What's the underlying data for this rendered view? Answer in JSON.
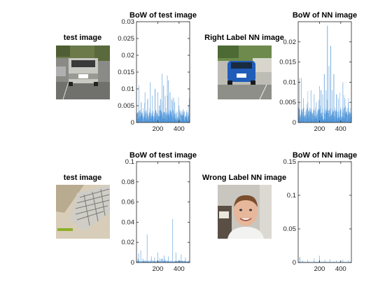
{
  "colors": {
    "bar": "#2a7fd0",
    "axis": "#262626"
  },
  "panels": [
    {
      "photo_title": "test image",
      "photo_icon": "pickup-truck-rear-photo",
      "chart_title": "BoW of test image"
    },
    {
      "photo_title": "Right Label NN image",
      "photo_icon": "blue-car-rear-photo",
      "chart_title": "BoW of NN image"
    },
    {
      "photo_title": "test image",
      "photo_icon": "keyboard-photo",
      "chart_title": "BoW of test image"
    },
    {
      "photo_title": "Wrong Label NN image",
      "photo_icon": "face-photo",
      "chart_title": "BoW of NN image"
    }
  ],
  "chart_data": [
    {
      "type": "bar",
      "title": "BoW of test image",
      "xlim": [
        0,
        500
      ],
      "ylim": [
        0,
        0.03
      ],
      "xticks": [
        200,
        400
      ],
      "yticks": [
        0,
        0.005,
        0.01,
        0.015,
        0.02,
        0.025,
        0.03
      ],
      "ytick_labels": [
        "0",
        "0.005",
        "0.01",
        "0.015",
        "0.02",
        "0.025",
        "0.03"
      ],
      "n_bins": 500,
      "baseline": 0.002,
      "peaks": [
        [
          22,
          0.011
        ],
        [
          45,
          0.006
        ],
        [
          80,
          0.009
        ],
        [
          105,
          0.007
        ],
        [
          130,
          0.012
        ],
        [
          150,
          0.008
        ],
        [
          175,
          0.01
        ],
        [
          200,
          0.009
        ],
        [
          225,
          0.007
        ],
        [
          240,
          0.0145
        ],
        [
          255,
          0.011
        ],
        [
          270,
          0.008
        ],
        [
          290,
          0.014
        ],
        [
          300,
          0.0125
        ],
        [
          315,
          0.009
        ],
        [
          330,
          0.007
        ],
        [
          360,
          0.006
        ],
        [
          400,
          0.005
        ],
        [
          440,
          0.004
        ],
        [
          470,
          0.003
        ]
      ]
    },
    {
      "type": "bar",
      "title": "BoW of NN image",
      "xlim": [
        0,
        500
      ],
      "ylim": [
        0,
        0.025
      ],
      "xticks": [
        200,
        400
      ],
      "yticks": [
        0,
        0.005,
        0.01,
        0.015,
        0.02
      ],
      "ytick_labels": [
        "0",
        "0.005",
        "0.01",
        "0.015",
        "0.02"
      ],
      "n_bins": 500,
      "baseline": 0.002,
      "peaks": [
        [
          12,
          0.011
        ],
        [
          30,
          0.011
        ],
        [
          50,
          0.006
        ],
        [
          90,
          0.005
        ],
        [
          120,
          0.008
        ],
        [
          150,
          0.007
        ],
        [
          170,
          0.005
        ],
        [
          200,
          0.009
        ],
        [
          215,
          0.008
        ],
        [
          230,
          0.007
        ],
        [
          245,
          0.012
        ],
        [
          262,
          0.008
        ],
        [
          275,
          0.024
        ],
        [
          290,
          0.014
        ],
        [
          305,
          0.019
        ],
        [
          320,
          0.008
        ],
        [
          335,
          0.012
        ],
        [
          360,
          0.007
        ],
        [
          380,
          0.006
        ],
        [
          420,
          0.01
        ],
        [
          440,
          0.006
        ],
        [
          470,
          0.005
        ]
      ]
    },
    {
      "type": "bar",
      "title": "BoW of test image",
      "xlim": [
        0,
        500
      ],
      "ylim": [
        0,
        0.1
      ],
      "xticks": [
        200,
        400
      ],
      "yticks": [
        0,
        0.02,
        0.04,
        0.06,
        0.08,
        0.1
      ],
      "ytick_labels": [
        "0",
        "0.02",
        "0.04",
        "0.06",
        "0.08",
        "0.1"
      ],
      "n_bins": 500,
      "baseline": 0.001,
      "peaks": [
        [
          20,
          0.009
        ],
        [
          40,
          0.012
        ],
        [
          60,
          0.004
        ],
        [
          100,
          0.028
        ],
        [
          140,
          0.006
        ],
        [
          170,
          0.005
        ],
        [
          200,
          0.01
        ],
        [
          220,
          0.004
        ],
        [
          260,
          0.007
        ],
        [
          300,
          0.006
        ],
        [
          340,
          0.043
        ],
        [
          370,
          0.01
        ],
        [
          420,
          0.008
        ],
        [
          460,
          0.005
        ]
      ]
    },
    {
      "type": "bar",
      "title": "BoW of NN image",
      "xlim": [
        0,
        500
      ],
      "ylim": [
        0,
        0.15
      ],
      "xticks": [
        200,
        400
      ],
      "yticks": [
        0,
        0.05,
        0.1,
        0.15
      ],
      "ytick_labels": [
        "0",
        "0.05",
        "0.1",
        "0.15"
      ],
      "n_bins": 500,
      "baseline": 0.0005,
      "peaks": [
        [
          15,
          0.008
        ],
        [
          40,
          0.003
        ],
        [
          90,
          0.004
        ],
        [
          150,
          0.006
        ],
        [
          200,
          0.01
        ],
        [
          250,
          0.004
        ],
        [
          300,
          0.005
        ],
        [
          360,
          0.003
        ],
        [
          420,
          0.004
        ],
        [
          470,
          0.003
        ]
      ]
    }
  ]
}
